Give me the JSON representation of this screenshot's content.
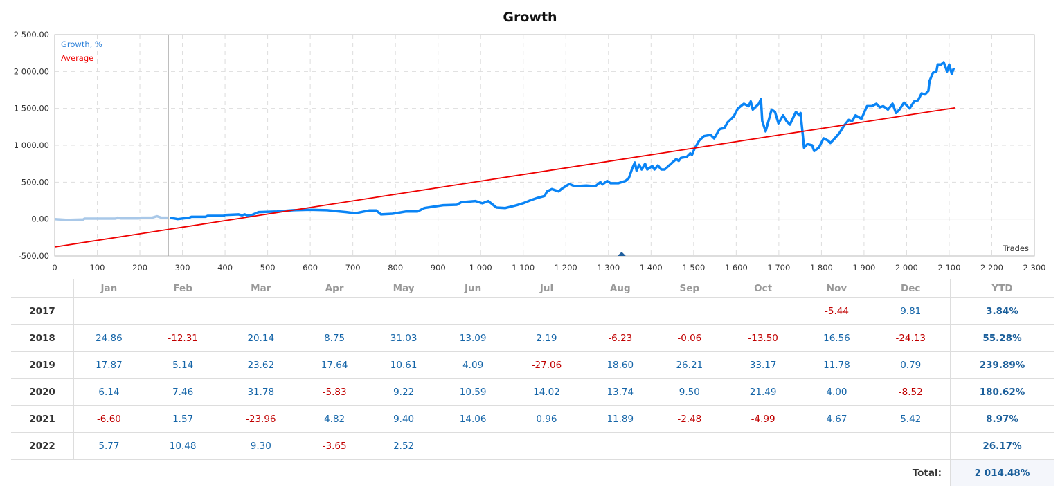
{
  "chart_data": {
    "type": "line",
    "title": "Growth",
    "xlabel": "Trades",
    "ylabel": "",
    "xlim": [
      0,
      2300
    ],
    "ylim": [
      -500,
      2500
    ],
    "grid": true,
    "legend_placement": "top-left",
    "x_ticks": [
      "0",
      "100",
      "200",
      "300",
      "400",
      "500",
      "600",
      "700",
      "800",
      "900",
      "1 000",
      "1 100",
      "1 200",
      "1 300",
      "1 400",
      "1 500",
      "1 600",
      "1 700",
      "1 800",
      "1 900",
      "2 000",
      "2 100",
      "2 200",
      "2 300"
    ],
    "y_ticks": [
      "2 500.00",
      "2 000.00",
      "1 500.00",
      "1 000.00",
      "500.00",
      "0.00",
      "-500.00"
    ],
    "colors": {
      "growth": "#0a84f5",
      "growth_history": "#a9c8e8",
      "average": "#ee0000",
      "marker": "#1f5f9e"
    },
    "history_boundary_trade": 267,
    "marker_trade": 1331,
    "series": [
      {
        "name": "Growth, %",
        "points": [
          [
            0,
            0
          ],
          [
            29,
            -12
          ],
          [
            67,
            -6
          ],
          [
            70,
            6
          ],
          [
            143,
            6
          ],
          [
            147,
            19
          ],
          [
            155,
            9
          ],
          [
            197,
            9
          ],
          [
            203,
            19
          ],
          [
            229,
            19
          ],
          [
            240,
            38
          ],
          [
            250,
            19
          ],
          [
            265,
            19
          ],
          [
            270,
            19
          ],
          [
            289,
            0
          ],
          [
            316,
            19
          ],
          [
            321,
            31
          ],
          [
            354,
            31
          ],
          [
            359,
            44
          ],
          [
            397,
            44
          ],
          [
            400,
            56
          ],
          [
            432,
            63
          ],
          [
            440,
            50
          ],
          [
            446,
            63
          ],
          [
            455,
            44
          ],
          [
            463,
            56
          ],
          [
            479,
            94
          ],
          [
            522,
            103
          ],
          [
            560,
            120
          ],
          [
            600,
            125
          ],
          [
            640,
            120
          ],
          [
            665,
            105
          ],
          [
            684,
            94
          ],
          [
            706,
            78
          ],
          [
            738,
            116
          ],
          [
            755,
            116
          ],
          [
            766,
            63
          ],
          [
            793,
            72
          ],
          [
            825,
            103
          ],
          [
            852,
            103
          ],
          [
            868,
            150
          ],
          [
            912,
            188
          ],
          [
            944,
            194
          ],
          [
            955,
            229
          ],
          [
            988,
            244
          ],
          [
            1004,
            213
          ],
          [
            1018,
            244
          ],
          [
            1037,
            156
          ],
          [
            1058,
            150
          ],
          [
            1085,
            188
          ],
          [
            1102,
            219
          ],
          [
            1118,
            257
          ],
          [
            1134,
            288
          ],
          [
            1150,
            313
          ],
          [
            1156,
            375
          ],
          [
            1167,
            407
          ],
          [
            1183,
            375
          ],
          [
            1191,
            413
          ],
          [
            1208,
            475
          ],
          [
            1221,
            444
          ],
          [
            1248,
            454
          ],
          [
            1269,
            444
          ],
          [
            1281,
            500
          ],
          [
            1286,
            469
          ],
          [
            1297,
            516
          ],
          [
            1305,
            485
          ],
          [
            1323,
            485
          ],
          [
            1340,
            516
          ],
          [
            1348,
            557
          ],
          [
            1356,
            688
          ],
          [
            1362,
            766
          ],
          [
            1366,
            656
          ],
          [
            1372,
            735
          ],
          [
            1378,
            672
          ],
          [
            1386,
            750
          ],
          [
            1391,
            672
          ],
          [
            1403,
            719
          ],
          [
            1408,
            672
          ],
          [
            1416,
            726
          ],
          [
            1424,
            672
          ],
          [
            1432,
            672
          ],
          [
            1459,
            813
          ],
          [
            1465,
            788
          ],
          [
            1470,
            828
          ],
          [
            1484,
            844
          ],
          [
            1492,
            891
          ],
          [
            1496,
            869
          ],
          [
            1502,
            954
          ],
          [
            1513,
            1063
          ],
          [
            1524,
            1125
          ],
          [
            1540,
            1141
          ],
          [
            1548,
            1094
          ],
          [
            1556,
            1172
          ],
          [
            1561,
            1219
          ],
          [
            1572,
            1234
          ],
          [
            1580,
            1313
          ],
          [
            1594,
            1391
          ],
          [
            1604,
            1500
          ],
          [
            1618,
            1563
          ],
          [
            1629,
            1531
          ],
          [
            1634,
            1594
          ],
          [
            1639,
            1484
          ],
          [
            1653,
            1563
          ],
          [
            1658,
            1625
          ],
          [
            1661,
            1328
          ],
          [
            1669,
            1188
          ],
          [
            1683,
            1484
          ],
          [
            1691,
            1453
          ],
          [
            1699,
            1297
          ],
          [
            1710,
            1406
          ],
          [
            1718,
            1328
          ],
          [
            1726,
            1281
          ],
          [
            1740,
            1453
          ],
          [
            1748,
            1406
          ],
          [
            1751,
            1438
          ],
          [
            1756,
            1156
          ],
          [
            1759,
            969
          ],
          [
            1767,
            1016
          ],
          [
            1778,
            1000
          ],
          [
            1783,
            922
          ],
          [
            1794,
            969
          ],
          [
            1805,
            1094
          ],
          [
            1816,
            1063
          ],
          [
            1821,
            1031
          ],
          [
            1829,
            1078
          ],
          [
            1843,
            1172
          ],
          [
            1853,
            1266
          ],
          [
            1864,
            1344
          ],
          [
            1872,
            1328
          ],
          [
            1880,
            1406
          ],
          [
            1894,
            1359
          ],
          [
            1907,
            1531
          ],
          [
            1918,
            1531
          ],
          [
            1929,
            1563
          ],
          [
            1937,
            1516
          ],
          [
            1945,
            1531
          ],
          [
            1956,
            1484
          ],
          [
            1967,
            1563
          ],
          [
            1975,
            1438
          ],
          [
            1983,
            1484
          ],
          [
            1994,
            1578
          ],
          [
            2007,
            1500
          ],
          [
            2018,
            1594
          ],
          [
            2027,
            1609
          ],
          [
            2035,
            1703
          ],
          [
            2043,
            1688
          ],
          [
            2051,
            1734
          ],
          [
            2054,
            1875
          ],
          [
            2062,
            1984
          ],
          [
            2070,
            2000
          ],
          [
            2073,
            2094
          ],
          [
            2081,
            2094
          ],
          [
            2087,
            2125
          ],
          [
            2095,
            2000
          ],
          [
            2100,
            2094
          ],
          [
            2106,
            1969
          ],
          [
            2111,
            2047
          ]
        ]
      },
      {
        "name": "Average",
        "points": [
          [
            0,
            -378
          ],
          [
            2113,
            1507
          ]
        ]
      }
    ]
  },
  "table": {
    "headers": [
      "",
      "Jan",
      "Feb",
      "Mar",
      "Apr",
      "May",
      "Jun",
      "Jul",
      "Aug",
      "Sep",
      "Oct",
      "Nov",
      "Dec",
      "YTD"
    ],
    "rows": [
      {
        "year": "2017",
        "values": [
          "",
          "",
          "",
          "",
          "",
          "",
          "",
          "",
          "",
          "",
          "-5.44",
          "9.81"
        ],
        "ytd": "3.84%"
      },
      {
        "year": "2018",
        "values": [
          "24.86",
          "-12.31",
          "20.14",
          "8.75",
          "31.03",
          "13.09",
          "2.19",
          "-6.23",
          "-0.06",
          "-13.50",
          "16.56",
          "-24.13"
        ],
        "ytd": "55.28%"
      },
      {
        "year": "2019",
        "values": [
          "17.87",
          "5.14",
          "23.62",
          "17.64",
          "10.61",
          "4.09",
          "-27.06",
          "18.60",
          "26.21",
          "33.17",
          "11.78",
          "0.79"
        ],
        "ytd": "239.89%"
      },
      {
        "year": "2020",
        "values": [
          "6.14",
          "7.46",
          "31.78",
          "-5.83",
          "9.22",
          "10.59",
          "14.02",
          "13.74",
          "9.50",
          "21.49",
          "4.00",
          "-8.52"
        ],
        "ytd": "180.62%"
      },
      {
        "year": "2021",
        "values": [
          "-6.60",
          "1.57",
          "-23.96",
          "4.82",
          "9.40",
          "14.06",
          "0.96",
          "11.89",
          "-2.48",
          "-4.99",
          "4.67",
          "5.42"
        ],
        "ytd": "8.97%"
      },
      {
        "year": "2022",
        "values": [
          "5.77",
          "10.48",
          "9.30",
          "-3.65",
          "2.52",
          "",
          "",
          "",
          "",
          "",
          "",
          ""
        ],
        "ytd": "26.17%"
      }
    ],
    "total_label": "Total:",
    "total_value": "2 014.48%"
  }
}
